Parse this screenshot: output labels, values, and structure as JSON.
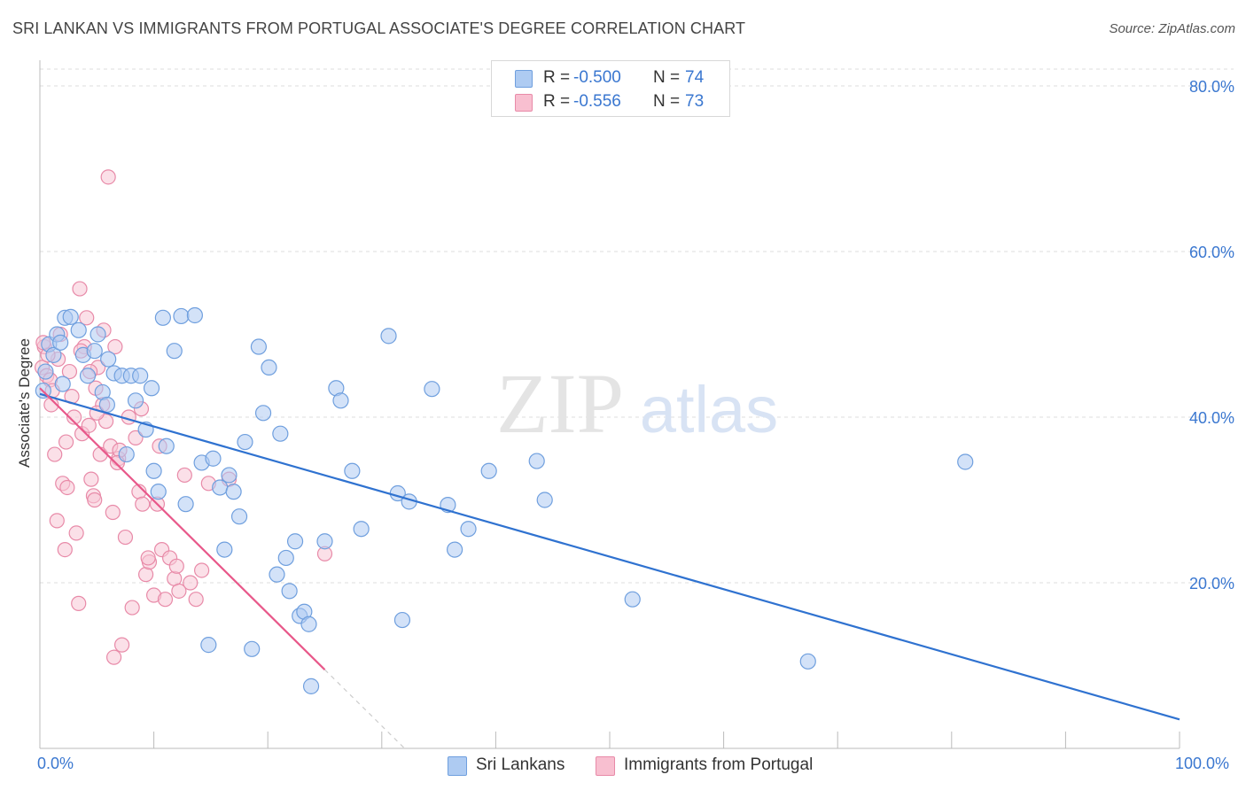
{
  "header": {
    "title": "SRI LANKAN VS IMMIGRANTS FROM PORTUGAL ASSOCIATE'S DEGREE CORRELATION CHART",
    "source": "Source: ZipAtlas.com"
  },
  "watermark": {
    "zip": "ZIP",
    "atlas": "atlas"
  },
  "stats": [
    {
      "r_label": "R =",
      "r_value": "-0.500",
      "n_label": "N =",
      "n_value": "74",
      "color": "#aecbf2"
    },
    {
      "r_label": "R =",
      "r_value": "-0.556",
      "n_label": "N =",
      "n_value": "73",
      "color": "#f8bfd0"
    }
  ],
  "legend": [
    {
      "label": "Sri Lankans",
      "color": "#aecbf2"
    },
    {
      "label": "Immigrants from Portugal",
      "color": "#f8bfd0"
    }
  ],
  "colors": {
    "blue_fill": "#aecbf2",
    "blue_stroke": "#6f9fde",
    "blue_line": "#2f72d0",
    "pink_fill": "#f8c6d6",
    "pink_stroke": "#e88aa8",
    "pink_line": "#e8588a",
    "tick_text": "#3a77d0",
    "grid": "#dddddd"
  },
  "chart_data": {
    "type": "scatter",
    "title": "SRI LANKAN VS IMMIGRANTS FROM PORTUGAL ASSOCIATE'S DEGREE CORRELATION CHART",
    "xlabel": "",
    "ylabel": "Associate's Degree",
    "xlim": [
      0,
      100
    ],
    "ylim": [
      0,
      80
    ],
    "x_tick_labels": [
      "0.0%",
      "100.0%"
    ],
    "y_ticks": [
      20,
      40,
      60,
      80
    ],
    "y_tick_labels": [
      "20.0%",
      "40.0%",
      "60.0%",
      "80.0%"
    ],
    "grid": true,
    "legend_position": "bottom",
    "series": [
      {
        "name": "Sri Lankans",
        "points": [
          [
            0.3,
            43.2
          ],
          [
            0.8,
            48.8
          ],
          [
            1.2,
            47.5
          ],
          [
            1.5,
            50.0
          ],
          [
            1.8,
            49.0
          ],
          [
            2.2,
            52.0
          ],
          [
            2.7,
            52.1
          ],
          [
            3.4,
            50.5
          ],
          [
            3.8,
            47.5
          ],
          [
            4.2,
            45.0
          ],
          [
            4.8,
            48.0
          ],
          [
            5.1,
            50.0
          ],
          [
            5.5,
            43.0
          ],
          [
            5.9,
            41.5
          ],
          [
            6.5,
            45.3
          ],
          [
            7.2,
            45.0
          ],
          [
            7.6,
            35.5
          ],
          [
            8.0,
            45.0
          ],
          [
            8.4,
            42.0
          ],
          [
            8.8,
            45.0
          ],
          [
            9.3,
            38.5
          ],
          [
            9.8,
            43.5
          ],
          [
            10.0,
            33.5
          ],
          [
            10.4,
            31.0
          ],
          [
            10.8,
            52.0
          ],
          [
            11.1,
            36.5
          ],
          [
            11.8,
            48.0
          ],
          [
            12.4,
            52.2
          ],
          [
            12.8,
            29.5
          ],
          [
            13.6,
            52.3
          ],
          [
            14.2,
            34.5
          ],
          [
            14.8,
            12.5
          ],
          [
            15.2,
            35.0
          ],
          [
            15.8,
            31.5
          ],
          [
            16.2,
            24.0
          ],
          [
            16.6,
            33.0
          ],
          [
            17.0,
            31.0
          ],
          [
            17.5,
            28.0
          ],
          [
            18.0,
            37.0
          ],
          [
            18.6,
            12.0
          ],
          [
            19.2,
            48.5
          ],
          [
            19.6,
            40.5
          ],
          [
            20.1,
            46.0
          ],
          [
            20.8,
            21.0
          ],
          [
            21.1,
            38.0
          ],
          [
            21.6,
            23.0
          ],
          [
            21.9,
            19.0
          ],
          [
            22.4,
            25.0
          ],
          [
            22.8,
            16.0
          ],
          [
            23.2,
            16.5
          ],
          [
            23.6,
            15.0
          ],
          [
            23.8,
            7.5
          ],
          [
            25.0,
            25.0
          ],
          [
            26.0,
            43.5
          ],
          [
            26.4,
            42.0
          ],
          [
            27.4,
            33.5
          ],
          [
            28.2,
            26.5
          ],
          [
            30.6,
            49.8
          ],
          [
            31.4,
            30.8
          ],
          [
            31.8,
            15.5
          ],
          [
            32.4,
            29.8
          ],
          [
            34.4,
            43.4
          ],
          [
            35.8,
            29.4
          ],
          [
            36.4,
            24.0
          ],
          [
            37.6,
            26.5
          ],
          [
            39.4,
            33.5
          ],
          [
            43.6,
            34.7
          ],
          [
            44.3,
            30.0
          ],
          [
            52.0,
            18.0
          ],
          [
            67.4,
            10.5
          ],
          [
            81.2,
            34.6
          ],
          [
            0.5,
            45.5
          ],
          [
            2.0,
            44.0
          ],
          [
            6.0,
            47.0
          ]
        ],
        "trend": [
          [
            0,
            42.8
          ],
          [
            100,
            3.5
          ]
        ]
      },
      {
        "name": "Immigrants from Portugal",
        "points": [
          [
            0.2,
            46.0
          ],
          [
            0.4,
            48.5
          ],
          [
            0.6,
            45.0
          ],
          [
            0.9,
            44.5
          ],
          [
            1.1,
            43.2
          ],
          [
            1.3,
            35.5
          ],
          [
            1.5,
            27.5
          ],
          [
            1.8,
            50.0
          ],
          [
            2.0,
            32.0
          ],
          [
            2.2,
            24.0
          ],
          [
            2.4,
            31.5
          ],
          [
            2.6,
            45.5
          ],
          [
            2.8,
            42.5
          ],
          [
            3.0,
            40.0
          ],
          [
            3.2,
            26.0
          ],
          [
            3.4,
            17.5
          ],
          [
            3.5,
            55.5
          ],
          [
            3.7,
            38.0
          ],
          [
            3.9,
            48.5
          ],
          [
            4.1,
            52.0
          ],
          [
            4.3,
            39.0
          ],
          [
            4.5,
            32.5
          ],
          [
            4.7,
            30.5
          ],
          [
            4.9,
            43.5
          ],
          [
            5.1,
            46.0
          ],
          [
            5.3,
            35.5
          ],
          [
            5.5,
            41.5
          ],
          [
            5.8,
            39.5
          ],
          [
            6.0,
            69.0
          ],
          [
            6.2,
            36.5
          ],
          [
            6.4,
            28.5
          ],
          [
            6.6,
            48.5
          ],
          [
            6.9,
            35.0
          ],
          [
            7.2,
            12.5
          ],
          [
            7.5,
            25.5
          ],
          [
            7.8,
            40.0
          ],
          [
            8.1,
            17.0
          ],
          [
            8.4,
            37.5
          ],
          [
            8.7,
            31.0
          ],
          [
            9.0,
            29.5
          ],
          [
            9.3,
            21.0
          ],
          [
            9.6,
            22.5
          ],
          [
            10.0,
            18.5
          ],
          [
            10.3,
            29.5
          ],
          [
            10.7,
            24.0
          ],
          [
            11.0,
            18.0
          ],
          [
            11.4,
            23.0
          ],
          [
            11.8,
            20.5
          ],
          [
            12.2,
            19.0
          ],
          [
            12.7,
            33.0
          ],
          [
            13.2,
            20.0
          ],
          [
            13.7,
            18.0
          ],
          [
            14.2,
            21.5
          ],
          [
            14.8,
            32.0
          ],
          [
            6.5,
            11.0
          ],
          [
            5.0,
            40.5
          ],
          [
            1.6,
            47.0
          ],
          [
            1.0,
            41.5
          ],
          [
            0.7,
            47.5
          ],
          [
            2.3,
            37.0
          ],
          [
            3.6,
            48.0
          ],
          [
            4.4,
            45.5
          ],
          [
            7.0,
            36.0
          ],
          [
            9.5,
            23.0
          ],
          [
            10.5,
            36.5
          ],
          [
            12.0,
            22.0
          ],
          [
            8.9,
            41.0
          ],
          [
            6.8,
            34.5
          ],
          [
            5.6,
            50.5
          ],
          [
            4.8,
            30.0
          ],
          [
            16.6,
            32.5
          ],
          [
            25.0,
            23.5
          ],
          [
            0.3,
            49.0
          ]
        ],
        "trend": [
          [
            0,
            43.5
          ],
          [
            25,
            9.5
          ]
        ],
        "trend_dashed_extension": [
          [
            25,
            9.5
          ],
          [
            32,
            0
          ]
        ]
      }
    ]
  }
}
